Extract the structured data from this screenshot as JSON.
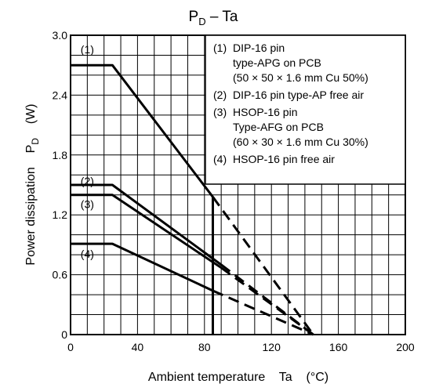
{
  "chart_data": {
    "type": "line",
    "title_main": "P",
    "title_sub": "D",
    "title_rest": " – Ta",
    "xlabel": "Ambient temperature    Ta    (°C)",
    "ylabel_main": "Power dissipation    P",
    "ylabel_sub": "D",
    "ylabel_unit": "    (W)",
    "xlim": [
      0,
      200
    ],
    "ylim": [
      0,
      3.0
    ],
    "xticks": [
      0,
      40,
      80,
      120,
      160,
      200
    ],
    "xtick_labels": [
      "0",
      "40",
      "80",
      "120",
      "160",
      "200"
    ],
    "yticks": [
      0,
      0.6,
      1.2,
      1.8,
      2.4,
      3.0
    ],
    "ytick_labels": [
      "0",
      "0.6",
      "1.2",
      "1.8",
      "2.4",
      "3.0"
    ],
    "grid": true,
    "legend_position": "top-right",
    "legend": [
      {
        "num": "(1)",
        "lines": [
          "DIP-16 pin",
          "type-APG on PCB",
          "(50 × 50 × 1.6 mm Cu 50%)"
        ]
      },
      {
        "num": "(2)",
        "lines": [
          "DIP-16 pin type-AP free air"
        ]
      },
      {
        "num": "(3)",
        "lines": [
          "HSOP-16 pin",
          "Type-AFG on PCB",
          "(60 × 30 × 1.6 mm Cu 30%)"
        ]
      },
      {
        "num": "(4)",
        "lines": [
          "HSOP-16 pin free air"
        ]
      }
    ],
    "series": [
      {
        "name": "(1)",
        "label_x": 6,
        "label_y": 2.82,
        "solid": [
          [
            0,
            2.7
          ],
          [
            25,
            2.7
          ],
          [
            85,
            1.38
          ]
        ],
        "dashed": [
          [
            85,
            1.38
          ],
          [
            145,
            0
          ]
        ]
      },
      {
        "name": "(2)",
        "label_x": 6,
        "label_y": 1.5,
        "solid": [
          [
            0,
            1.5
          ],
          [
            25,
            1.5
          ],
          [
            90,
            0.7
          ]
        ],
        "dashed": [
          [
            90,
            0.7
          ],
          [
            145,
            0
          ]
        ]
      },
      {
        "name": "(3)",
        "label_x": 6,
        "label_y": 1.27,
        "solid": [
          [
            0,
            1.4
          ],
          [
            25,
            1.4
          ],
          [
            90,
            0.67
          ]
        ],
        "dashed": [
          [
            90,
            0.67
          ],
          [
            145,
            0
          ]
        ]
      },
      {
        "name": "(4)",
        "label_x": 6,
        "label_y": 0.77,
        "solid": [
          [
            0,
            0.91
          ],
          [
            25,
            0.91
          ],
          [
            85,
            0.44
          ]
        ],
        "dashed": [
          [
            85,
            0.44
          ],
          [
            145,
            0
          ]
        ]
      }
    ],
    "vline": {
      "x": 85,
      "y_top": 1.38
    }
  }
}
